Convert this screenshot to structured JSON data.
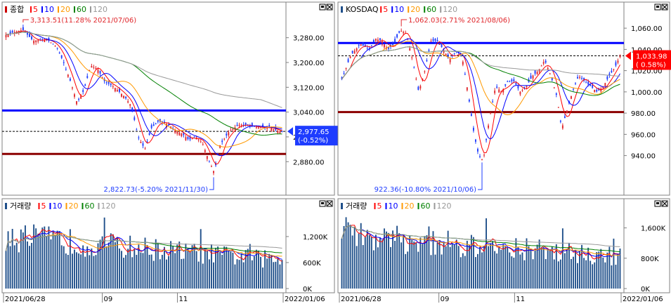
{
  "colors": {
    "ma5": "#ff0000",
    "ma10": "#0000ff",
    "ma20": "#ff9900",
    "ma60": "#008000",
    "ma120": "#999999",
    "up": "#e0262b",
    "down": "#1e3cff",
    "vol": "#1f4f8a",
    "support": "#8b0000",
    "resistance": "#0000ff"
  },
  "legend_prefix_labels": {
    "num5": "5",
    "num10": "10",
    "num20": "20",
    "num60": "60",
    "num120": "120"
  },
  "panels": [
    {
      "price": {
        "title": "종합",
        "yticks": [
          "3,280.00",
          "3,200.00",
          "3,120.00",
          "3,040.00",
          "2,960.00",
          "2,880.00"
        ],
        "ytick_values": [
          3280,
          3200,
          3120,
          3040,
          2960,
          2880
        ],
        "ylim": [
          2790,
          3345
        ],
        "high_annotation": "3,313.51(11.28% 2021/07/06)",
        "low_annotation": "2,822.73(-5.20% 2021/11/30)",
        "current_value": "2,977.65",
        "current_change": "(-0.52%)",
        "current": 2977.65,
        "resistance": 3045,
        "support": 2905,
        "high": 3313.51,
        "low": 2822.73
      },
      "volume": {
        "title": "거래량",
        "yticks": [
          "1,200K",
          "600K",
          "0K"
        ],
        "ytick_values": [
          1200,
          600,
          0
        ],
        "ylim": [
          0,
          1750
        ]
      },
      "x_labels": [
        "2021/06/28",
        "09",
        "11",
        "2022/01/06"
      ]
    },
    {
      "price": {
        "title": "KOSDAQ",
        "yticks": [
          "1,060.00",
          "1,040.00",
          "1,020.00",
          "1,000.00",
          "980.00",
          "960.00",
          "940.00"
        ],
        "ytick_values": [
          1060,
          1040,
          1020,
          1000,
          980,
          960,
          940
        ],
        "ylim": [
          908,
          1070
        ],
        "high_annotation": "1,062.03(2.71% 2021/08/06)",
        "low_annotation": "922.36(-10.80% 2021/10/06)",
        "current_value": "1,033.98",
        "current_change": "( 0.58%)",
        "current": 1033.98,
        "resistance": 1046,
        "support": 981,
        "high": 1062.03,
        "low": 922.36
      },
      "volume": {
        "title": "거래량",
        "yticks": [
          "1,600K",
          "800K",
          "0K"
        ],
        "ytick_values": [
          1600,
          800,
          0
        ],
        "ylim": [
          0,
          2000
        ]
      },
      "x_labels": [
        "2021/06/28",
        "09",
        "11",
        "2022/01/06"
      ]
    }
  ],
  "chart_data": [
    {
      "type": "candlestick",
      "title": "종합",
      "ylim": [
        2790,
        3345
      ],
      "y_ticks": [
        3280,
        3200,
        3120,
        3040,
        2960,
        2880
      ],
      "moving_averages": [
        5,
        10,
        20,
        60,
        120
      ],
      "annotations": {
        "high": "3,313.51 (11.28% 2021/07/06)",
        "low": "2,822.73 (-5.20% 2021/11/30)",
        "last": "2,977.65 (-0.52%)"
      },
      "horizontal_lines": {
        "resistance": 3045,
        "support": 2905
      },
      "approx_close_path": [
        {
          "x": "2021/06/28",
          "y": 3290
        },
        {
          "x": "2021/07/06",
          "y": 3305
        },
        {
          "x": "2021/08",
          "y": 3260
        },
        {
          "x": "2021/08/20",
          "y": 3070
        },
        {
          "x": "2021/09",
          "y": 3190
        },
        {
          "x": "2021/09/30",
          "y": 3070
        },
        {
          "x": "2021/10",
          "y": 2960
        },
        {
          "x": "2021/10/25",
          "y": 3015
        },
        {
          "x": "2021/11",
          "y": 2980
        },
        {
          "x": "2021/11/30",
          "y": 2840
        },
        {
          "x": "2021/12",
          "y": 3000
        },
        {
          "x": "2022/01/06",
          "y": 2977.65
        }
      ]
    },
    {
      "type": "bar",
      "title": "거래량",
      "ylim": [
        0,
        1750
      ],
      "y_ticks": [
        1200,
        600,
        0
      ]
    },
    {
      "type": "candlestick",
      "title": "KOSDAQ",
      "ylim": [
        908,
        1070
      ],
      "y_ticks": [
        1060,
        1040,
        1020,
        1000,
        980,
        960,
        940
      ],
      "moving_averages": [
        5,
        10,
        20,
        60,
        120
      ],
      "annotations": {
        "high": "1,062.03 (2.71% 2021/08/06)",
        "low": "922.36 (-10.80% 2021/10/06)",
        "last": "1,033.98 (0.58%)"
      },
      "horizontal_lines": {
        "resistance": 1046,
        "support": 981
      },
      "approx_close_path": [
        {
          "x": "2021/06/28",
          "y": 1012
        },
        {
          "x": "2021/07",
          "y": 1045
        },
        {
          "x": "2021/08/06",
          "y": 1060
        },
        {
          "x": "2021/08/20",
          "y": 995
        },
        {
          "x": "2021/09",
          "y": 1050
        },
        {
          "x": "2021/09/20",
          "y": 1035
        },
        {
          "x": "2021/10/06",
          "y": 935
        },
        {
          "x": "2021/10/25",
          "y": 1015
        },
        {
          "x": "2021/11",
          "y": 1020
        },
        {
          "x": "2021/11/30",
          "y": 960
        },
        {
          "x": "2021/12",
          "y": 1015
        },
        {
          "x": "2022/01/06",
          "y": 1033.98
        }
      ]
    },
    {
      "type": "bar",
      "title": "거래량",
      "ylim": [
        0,
        2000
      ],
      "y_ticks": [
        1600,
        800,
        0
      ]
    }
  ]
}
